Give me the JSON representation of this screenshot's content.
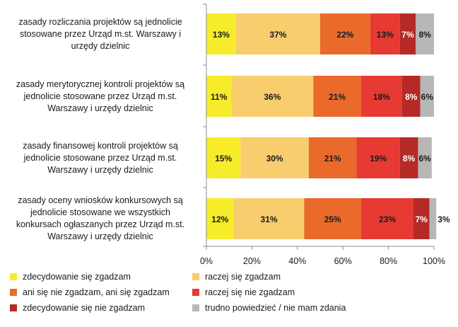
{
  "chart_data": {
    "type": "bar",
    "orientation": "horizontal",
    "stacked": "percent",
    "categories": [
      "zasady rozliczania projektów są jednolicie stosowane przez Urząd m.st. Warszawy i urzędy dzielnic",
      "zasady merytorycznej kontroli projektów są jednolicie stosowane przez Urząd m.st. Warszawy i urzędy dzielnic",
      "zasady finansowej kontroli projektów są jednolicie stosowane przez Urząd m.st. Warszawy i urzędy dzielnic",
      "zasady oceny wniosków konkursowych są jednolicie stosowane we wszystkich konkursach ogłaszanych przez Urząd m.st. Warszawy i urzędy dzielnic"
    ],
    "category_lines": [
      [
        "zasady rozliczania projektów są jednolicie",
        "stosowane przez Urząd m.st. Warszawy i",
        "urzędy dzielnic"
      ],
      [
        "zasady merytorycznej kontroli projektów są",
        "jednolicie stosowane przez Urząd m.st.",
        "Warszawy i urzędy dzielnic"
      ],
      [
        "zasady finansowej kontroli projektów są",
        "jednolicie stosowane przez Urząd m.st.",
        "Warszawy i urzędy dzielnic"
      ],
      [
        "zasady oceny wniosków konkursowych są",
        "jednolicie stosowane we wszystkich",
        "konkursach ogłaszanych przez Urząd m.st.",
        "Warszawy i urzędy dzielnic"
      ]
    ],
    "series": [
      {
        "name": "zdecydowanie się zgadzam",
        "color": "#f7ec2a",
        "label_color": "#1a1a1a",
        "values": [
          13,
          11,
          15,
          12
        ]
      },
      {
        "name": "raczej się zgadzam",
        "color": "#f8cd6e",
        "label_color": "#1a1a1a",
        "values": [
          37,
          36,
          30,
          31
        ]
      },
      {
        "name": "ani się nie zgadzam, ani się zgadzam",
        "color": "#ea6a2c",
        "label_color": "#1a1a1a",
        "values": [
          22,
          21,
          21,
          25
        ]
      },
      {
        "name": "raczej się nie zgadzam",
        "color": "#e63a33",
        "label_color": "#1a1a1a",
        "values": [
          13,
          18,
          19,
          23
        ]
      },
      {
        "name": "zdecydowanie się nie zgadzam",
        "color": "#b52a26",
        "label_color": "#ffffff",
        "values": [
          7,
          8,
          8,
          7
        ]
      },
      {
        "name": "trudno powiedzieć / nie mam zdania",
        "color": "#b7b7b7",
        "label_color": "#1a1a1a",
        "values": [
          8,
          6,
          6,
          3
        ]
      }
    ],
    "x_ticks": [
      "0%",
      "20%",
      "40%",
      "60%",
      "80%",
      "100%"
    ],
    "xlim": [
      0,
      100
    ],
    "grid": false,
    "legend_position": "bottom"
  }
}
